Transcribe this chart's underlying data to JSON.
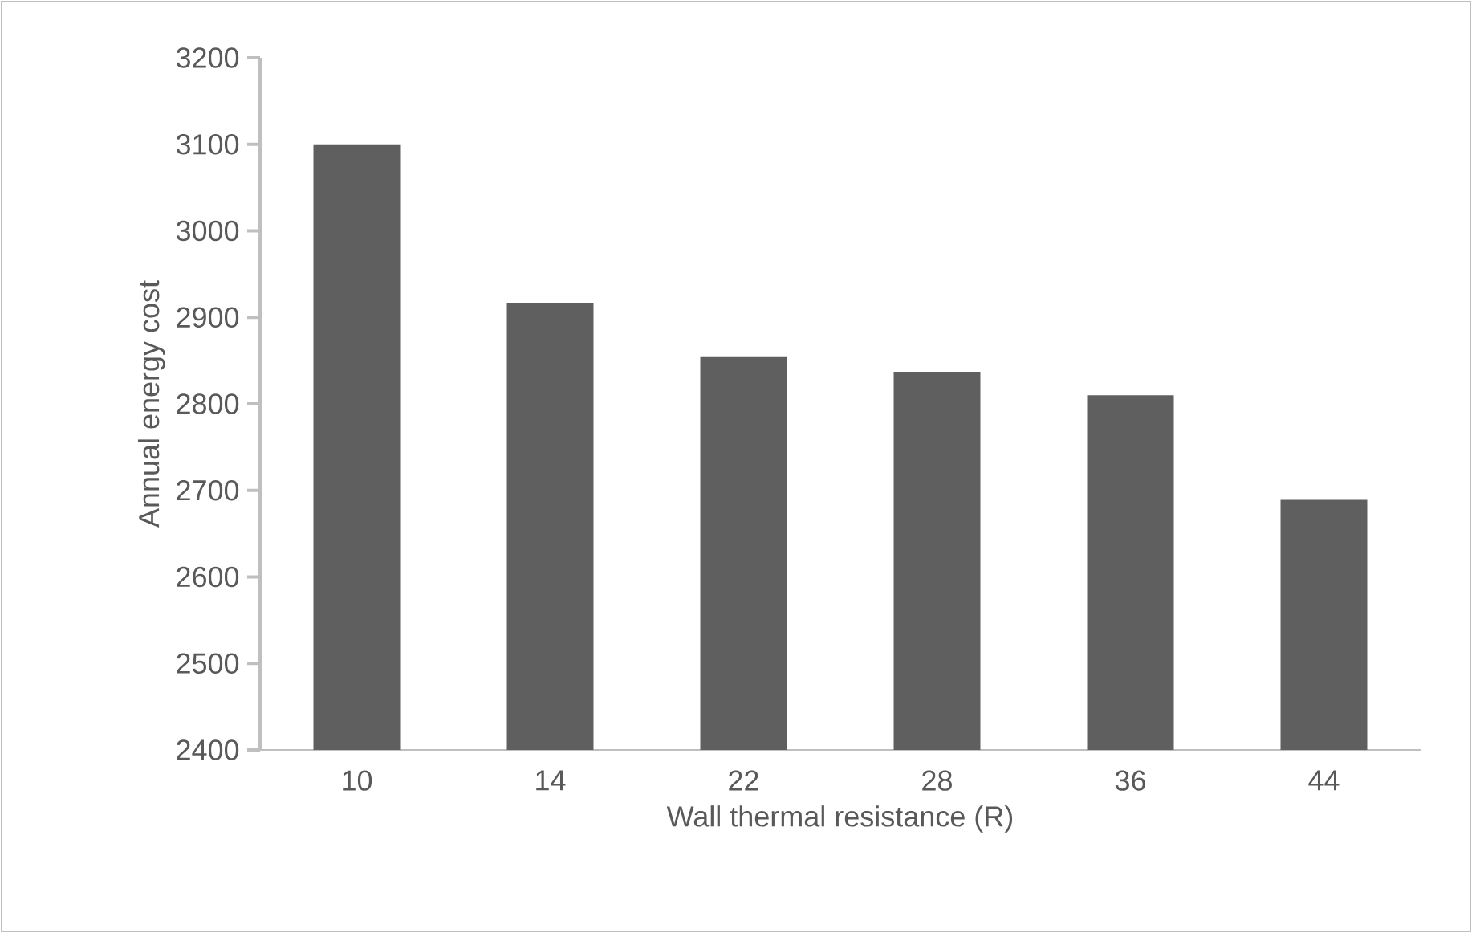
{
  "chart_data": {
    "type": "bar",
    "xlabel": "Wall thermal resistance (R)",
    "ylabel": "Annual energy cost",
    "categories": [
      "10",
      "14",
      "22",
      "28",
      "36",
      "44"
    ],
    "values": [
      3100,
      2917,
      2854,
      2837,
      2810,
      2689
    ],
    "color": "#5f5f5f",
    "ylim": [
      2400,
      3200
    ],
    "yticks": [
      2400,
      2500,
      2600,
      2700,
      2800,
      2900,
      3000,
      3100,
      3200
    ],
    "grid": false
  }
}
